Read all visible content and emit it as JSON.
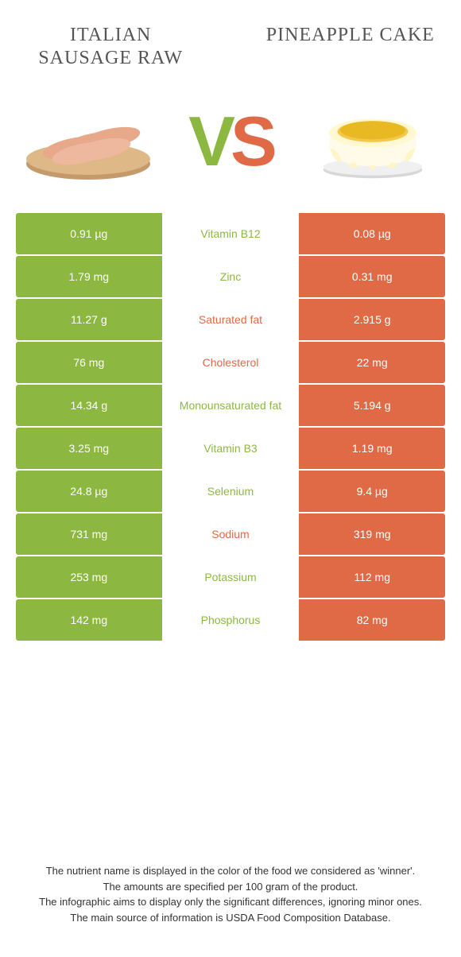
{
  "colors": {
    "green": "#8cb842",
    "orange": "#e06a45",
    "white": "#ffffff",
    "text": "#555555"
  },
  "left": {
    "title": "Italian sausage raw"
  },
  "right": {
    "title": "Pineapple cake"
  },
  "vs": {
    "v": "V",
    "s": "S"
  },
  "rows": [
    {
      "nutrient": "Vitamin B12",
      "left": "0.91 µg",
      "right": "0.08 µg",
      "winner": "left"
    },
    {
      "nutrient": "Zinc",
      "left": "1.79 mg",
      "right": "0.31 mg",
      "winner": "left"
    },
    {
      "nutrient": "Saturated fat",
      "left": "11.27 g",
      "right": "2.915 g",
      "winner": "right"
    },
    {
      "nutrient": "Cholesterol",
      "left": "76 mg",
      "right": "22 mg",
      "winner": "right"
    },
    {
      "nutrient": "Monounsaturated fat",
      "left": "14.34 g",
      "right": "5.194 g",
      "winner": "left"
    },
    {
      "nutrient": "Vitamin B3",
      "left": "3.25 mg",
      "right": "1.19 mg",
      "winner": "left"
    },
    {
      "nutrient": "Selenium",
      "left": "24.8 µg",
      "right": "9.4 µg",
      "winner": "left"
    },
    {
      "nutrient": "Sodium",
      "left": "731 mg",
      "right": "319 mg",
      "winner": "right"
    },
    {
      "nutrient": "Potassium",
      "left": "253 mg",
      "right": "112 mg",
      "winner": "left"
    },
    {
      "nutrient": "Phosphorus",
      "left": "142 mg",
      "right": "82 mg",
      "winner": "left"
    }
  ],
  "footer": {
    "l1": "The nutrient name is displayed in the color of the food we considered as 'winner'.",
    "l2": "The amounts are specified per 100 gram of the product.",
    "l3": "The infographic aims to display only the significant differences, ignoring minor ones.",
    "l4": "The main source of information is USDA Food Composition Database."
  }
}
